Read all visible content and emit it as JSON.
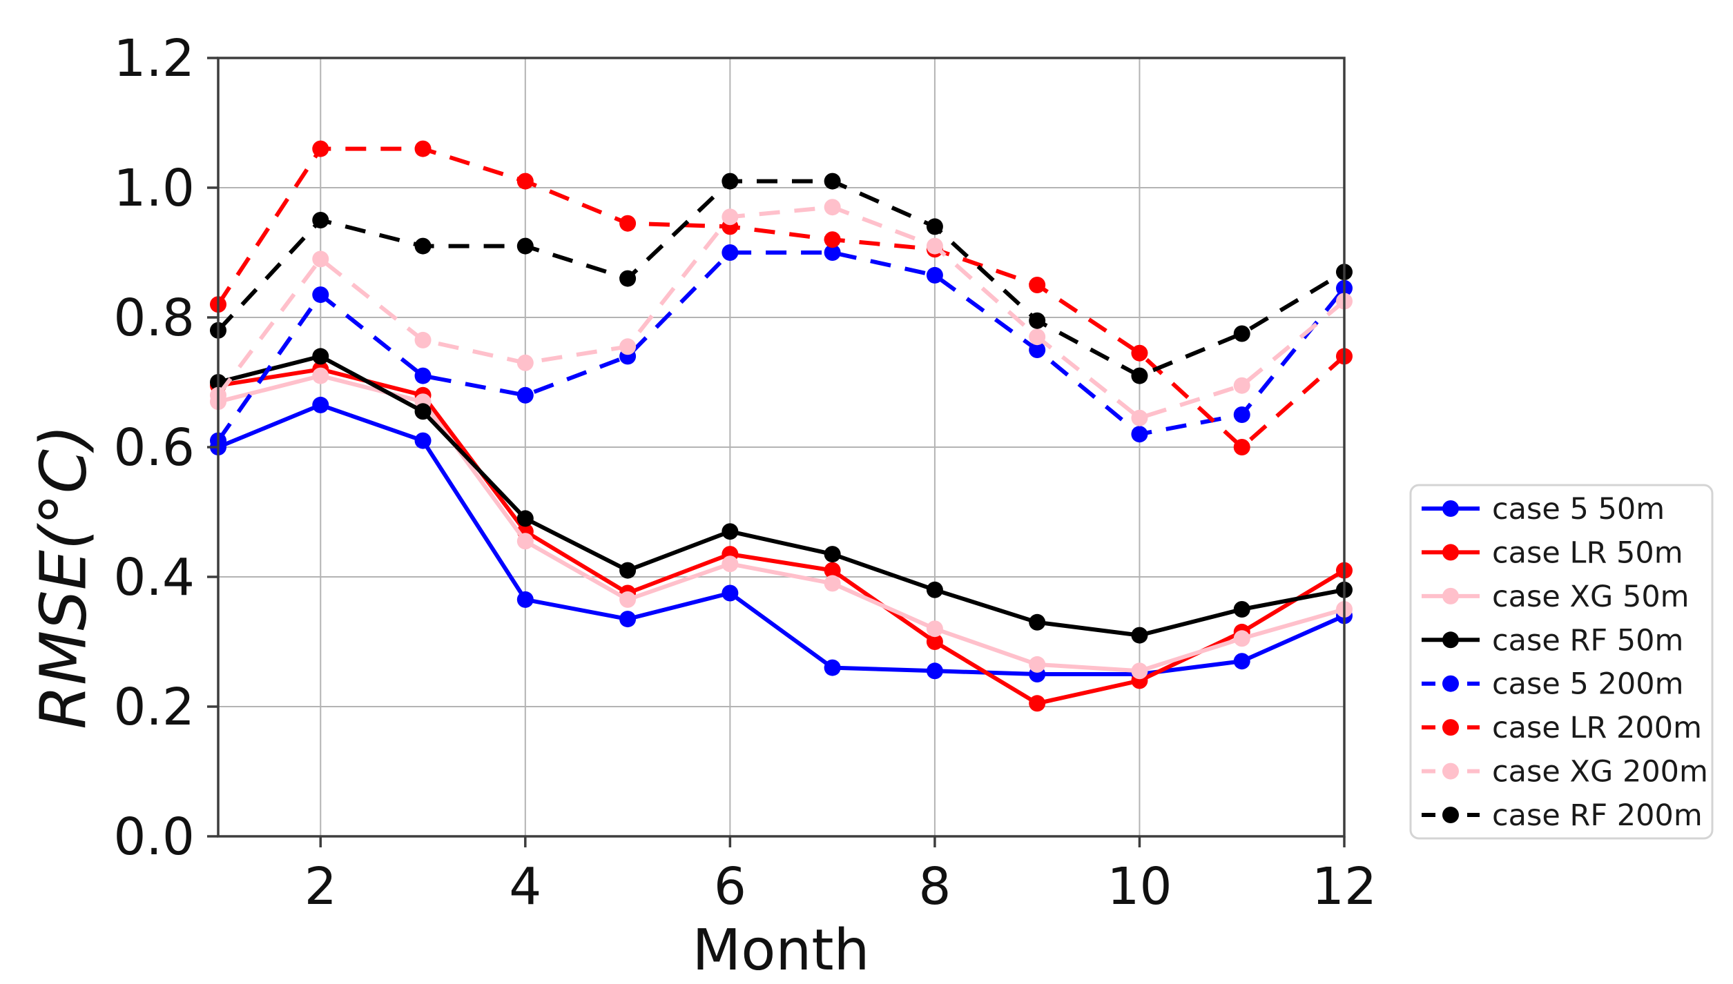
{
  "figure": {
    "background": "#ffffff",
    "grid_color": "#b3b3b3",
    "spine_color": "#3d3d3d",
    "text_color": "#111111",
    "legend_border_color": "#d4d4d4"
  },
  "chart_data": {
    "type": "line",
    "title": "",
    "xlabel": "Month",
    "ylabel": "RMSE(°C)",
    "x": [
      1,
      2,
      3,
      4,
      5,
      6,
      7,
      8,
      9,
      10,
      11,
      12
    ],
    "xlim": [
      1,
      12
    ],
    "ylim": [
      0.0,
      1.2
    ],
    "xticks": [
      2,
      4,
      6,
      8,
      10,
      12
    ],
    "yticks": [
      0.0,
      0.2,
      0.4,
      0.6,
      0.8,
      1.0,
      1.2
    ],
    "grid": true,
    "legend_position": "right-outside",
    "series": [
      {
        "name": "case 5 50m",
        "color": "#0000ff",
        "line_style": "solid",
        "marker": "circle",
        "values": [
          0.6,
          0.665,
          0.61,
          0.365,
          0.335,
          0.375,
          0.26,
          0.255,
          0.25,
          0.25,
          0.27,
          0.34
        ]
      },
      {
        "name": "case LR 50m",
        "color": "#ff0000",
        "line_style": "solid",
        "marker": "circle",
        "values": [
          0.695,
          0.72,
          0.68,
          0.47,
          0.375,
          0.435,
          0.41,
          0.3,
          0.205,
          0.24,
          0.315,
          0.41
        ]
      },
      {
        "name": "case XG 50m",
        "color": "#ffc0cb",
        "line_style": "solid",
        "marker": "circle",
        "values": [
          0.67,
          0.71,
          0.67,
          0.455,
          0.365,
          0.42,
          0.39,
          0.32,
          0.265,
          0.255,
          0.305,
          0.35
        ]
      },
      {
        "name": "case RF 50m",
        "color": "#000000",
        "line_style": "solid",
        "marker": "circle",
        "values": [
          0.7,
          0.74,
          0.655,
          0.49,
          0.41,
          0.47,
          0.435,
          0.38,
          0.33,
          0.31,
          0.35,
          0.38
        ]
      },
      {
        "name": "case 5 200m",
        "color": "#0000ff",
        "line_style": "dashed",
        "marker": "circle",
        "values": [
          0.61,
          0.835,
          0.71,
          0.68,
          0.74,
          0.9,
          0.9,
          0.865,
          0.75,
          0.62,
          0.65,
          0.845
        ]
      },
      {
        "name": "case LR 200m",
        "color": "#ff0000",
        "line_style": "dashed",
        "marker": "circle",
        "values": [
          0.82,
          1.06,
          1.06,
          1.01,
          0.945,
          0.94,
          0.92,
          0.905,
          0.85,
          0.745,
          0.6,
          0.74
        ]
      },
      {
        "name": "case XG 200m",
        "color": "#ffc0cb",
        "line_style": "dashed",
        "marker": "circle",
        "values": [
          0.68,
          0.89,
          0.765,
          0.73,
          0.755,
          0.955,
          0.97,
          0.91,
          0.77,
          0.645,
          0.695,
          0.825
        ]
      },
      {
        "name": "case RF 200m",
        "color": "#000000",
        "line_style": "dashed",
        "marker": "circle",
        "values": [
          0.78,
          0.95,
          0.91,
          0.91,
          0.86,
          1.01,
          1.01,
          0.94,
          0.795,
          0.71,
          0.775,
          0.87
        ]
      }
    ]
  }
}
